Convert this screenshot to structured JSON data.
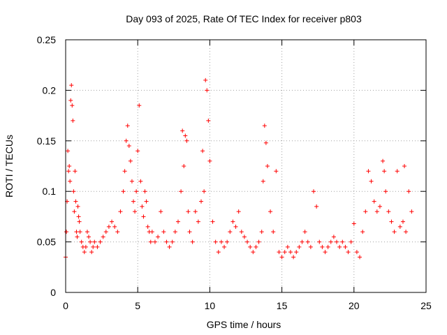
{
  "chart_data": {
    "type": "scatter",
    "title": "Day 093 of 2025, Rate Of TEC Index for receiver p803",
    "xlabel": "GPS time / hours",
    "ylabel": "ROTI / TECUs",
    "xlim": [
      0,
      25
    ],
    "ylim": [
      0,
      0.25
    ],
    "xticks": [
      0,
      5,
      10,
      15,
      20,
      25
    ],
    "yticks": [
      0,
      0.05,
      0.1,
      0.15,
      0.2,
      0.25
    ],
    "xtick_labels": [
      "0",
      "5",
      "10",
      "15",
      "20",
      "25"
    ],
    "ytick_labels": [
      "0",
      "0.05",
      "0.1",
      "0.15",
      "0.2",
      "0.25"
    ],
    "grid": true,
    "marker": "+",
    "color": "#ff0000",
    "series": [
      {
        "x": [
          0.0,
          0.05,
          0.1,
          0.15,
          0.2,
          0.25,
          0.3,
          0.35,
          0.4,
          0.45,
          0.5,
          0.55,
          0.6,
          0.65,
          0.7,
          0.75,
          0.8,
          0.85,
          0.9,
          0.95,
          1.0,
          1.1,
          1.2,
          1.3,
          1.4,
          1.5,
          1.6,
          1.7,
          1.8,
          1.9,
          2.0,
          2.2,
          2.4,
          2.6,
          2.8,
          3.0,
          3.2,
          3.4,
          3.6,
          3.8,
          4.0,
          4.1,
          4.2,
          4.3,
          4.4,
          4.5,
          4.6,
          4.7,
          4.8,
          4.9,
          5.0,
          5.1,
          5.2,
          5.3,
          5.4,
          5.5,
          5.6,
          5.7,
          5.8,
          5.9,
          6.0,
          6.2,
          6.4,
          6.6,
          6.8,
          7.0,
          7.2,
          7.4,
          7.6,
          7.8,
          8.0,
          8.1,
          8.2,
          8.3,
          8.4,
          8.5,
          8.6,
          8.8,
          9.0,
          9.2,
          9.4,
          9.5,
          9.6,
          9.7,
          9.8,
          9.9,
          10.0,
          10.2,
          10.4,
          10.6,
          10.8,
          11.0,
          11.2,
          11.4,
          11.6,
          11.8,
          12.0,
          12.2,
          12.4,
          12.6,
          12.8,
          13.0,
          13.2,
          13.4,
          13.6,
          13.7,
          13.8,
          13.9,
          14.0,
          14.2,
          14.4,
          14.6,
          14.8,
          15.0,
          15.2,
          15.4,
          15.6,
          15.8,
          16.0,
          16.2,
          16.4,
          16.6,
          16.8,
          17.0,
          17.2,
          17.4,
          17.6,
          17.8,
          18.0,
          18.2,
          18.4,
          18.6,
          18.8,
          19.0,
          19.2,
          19.4,
          19.6,
          19.8,
          20.0,
          20.2,
          20.4,
          20.6,
          20.8,
          21.0,
          21.2,
          21.4,
          21.6,
          21.8,
          22.0,
          22.1,
          22.2,
          22.4,
          22.6,
          22.8,
          23.0,
          23.2,
          23.4,
          23.5,
          23.6,
          23.8,
          24.0
        ],
        "y": [
          0.035,
          0.06,
          0.09,
          0.14,
          0.12,
          0.125,
          0.11,
          0.19,
          0.205,
          0.185,
          0.17,
          0.1,
          0.08,
          0.12,
          0.09,
          0.06,
          0.055,
          0.085,
          0.075,
          0.07,
          0.06,
          0.05,
          0.045,
          0.04,
          0.045,
          0.06,
          0.055,
          0.05,
          0.04,
          0.045,
          0.05,
          0.045,
          0.05,
          0.055,
          0.06,
          0.065,
          0.07,
          0.065,
          0.06,
          0.08,
          0.1,
          0.12,
          0.15,
          0.165,
          0.145,
          0.13,
          0.11,
          0.09,
          0.08,
          0.1,
          0.14,
          0.185,
          0.11,
          0.085,
          0.075,
          0.1,
          0.09,
          0.065,
          0.06,
          0.05,
          0.06,
          0.05,
          0.055,
          0.08,
          0.06,
          0.05,
          0.045,
          0.05,
          0.06,
          0.07,
          0.1,
          0.16,
          0.125,
          0.155,
          0.15,
          0.08,
          0.06,
          0.05,
          0.08,
          0.07,
          0.09,
          0.14,
          0.1,
          0.21,
          0.2,
          0.17,
          0.13,
          0.07,
          0.05,
          0.04,
          0.05,
          0.045,
          0.05,
          0.06,
          0.07,
          0.065,
          0.08,
          0.06,
          0.055,
          0.05,
          0.045,
          0.04,
          0.045,
          0.05,
          0.06,
          0.11,
          0.165,
          0.148,
          0.125,
          0.08,
          0.06,
          0.12,
          0.04,
          0.035,
          0.04,
          0.045,
          0.04,
          0.035,
          0.04,
          0.045,
          0.05,
          0.06,
          0.05,
          0.045,
          0.1,
          0.085,
          0.05,
          0.045,
          0.04,
          0.045,
          0.05,
          0.055,
          0.05,
          0.045,
          0.05,
          0.045,
          0.04,
          0.05,
          0.068,
          0.04,
          0.035,
          0.06,
          0.08,
          0.12,
          0.11,
          0.09,
          0.08,
          0.085,
          0.13,
          0.12,
          0.1,
          0.08,
          0.07,
          0.06,
          0.12,
          0.065,
          0.07,
          0.125,
          0.06,
          0.1,
          0.08
        ]
      }
    ]
  }
}
